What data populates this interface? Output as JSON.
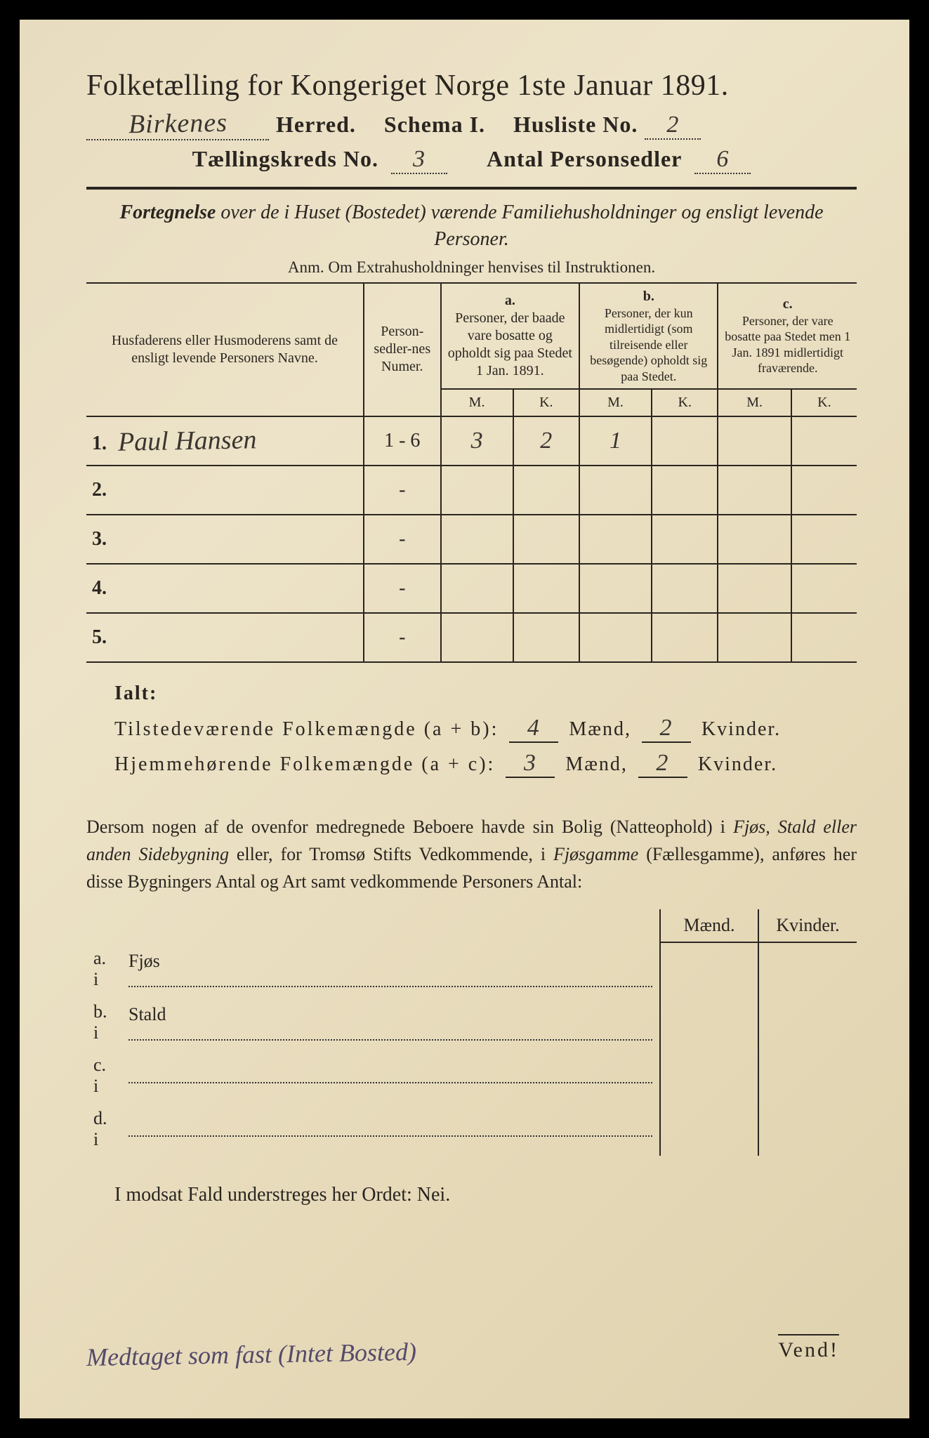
{
  "title": "Folketælling for Kongeriget Norge 1ste Januar 1891.",
  "header": {
    "herred_value": "Birkenes",
    "herred_label": "Herred.",
    "schema_label": "Schema I.",
    "husliste_label": "Husliste No.",
    "husliste_value": "2",
    "kreds_label": "Tællingskreds No.",
    "kreds_value": "3",
    "antal_label": "Antal Personsedler",
    "antal_value": "6"
  },
  "subtitle": "Fortegnelse over de i Huset (Bostedet) værende Familiehusholdninger og ensligt levende Personer.",
  "anm": "Anm. Om Extrahusholdninger henvises til Instruktionen.",
  "table": {
    "col_names": "Husfaderens eller Husmoderens samt de ensligt levende Personers Navne.",
    "col_num": "Person-sedler-nes Numer.",
    "col_a_head": "a.",
    "col_a": "Personer, der baade vare bosatte og opholdt sig paa Stedet 1 Jan. 1891.",
    "col_b_head": "b.",
    "col_b": "Personer, der kun midlertidigt (som tilreisende eller besøgende) opholdt sig paa Stedet.",
    "col_c_head": "c.",
    "col_c": "Personer, der vare bosatte paa Stedet men 1 Jan. 1891 midlertidigt fraværende.",
    "m": "M.",
    "k": "K.",
    "rows": [
      {
        "n": "1.",
        "name": "Paul Hansen",
        "num": "1 - 6",
        "am": "3",
        "ak": "2",
        "bm": "1",
        "bk": "",
        "cm": "",
        "ck": ""
      },
      {
        "n": "2.",
        "name": "",
        "num": "-",
        "am": "",
        "ak": "",
        "bm": "",
        "bk": "",
        "cm": "",
        "ck": ""
      },
      {
        "n": "3.",
        "name": "",
        "num": "-",
        "am": "",
        "ak": "",
        "bm": "",
        "bk": "",
        "cm": "",
        "ck": ""
      },
      {
        "n": "4.",
        "name": "",
        "num": "-",
        "am": "",
        "ak": "",
        "bm": "",
        "bk": "",
        "cm": "",
        "ck": ""
      },
      {
        "n": "5.",
        "name": "",
        "num": "-",
        "am": "",
        "ak": "",
        "bm": "",
        "bk": "",
        "cm": "",
        "ck": ""
      }
    ]
  },
  "ialt": {
    "label": "Ialt:",
    "line1_label": "Tilstedeværende Folkemængde (a + b):",
    "line1_m": "4",
    "line1_k": "2",
    "line2_label": "Hjemmehørende Folkemængde (a + c):",
    "line2_m": "3",
    "line2_k": "2",
    "maend": "Mænd,",
    "kvinder": "Kvinder."
  },
  "para": "Dersom nogen af de ovenfor medregnede Beboere havde sin Bolig (Natteophold) i Fjøs, Stald eller anden Sidebygning eller, for Tromsø Stifts Vedkommende, i Fjøsgamme (Fællesgamme), anføres her disse Bygningers Antal og Art samt vedkommende Personers Antal:",
  "bygn": {
    "maend": "Mænd.",
    "kvinder": "Kvinder.",
    "rows": [
      {
        "lbl": "a. i",
        "txt": "Fjøs"
      },
      {
        "lbl": "b. i",
        "txt": "Stald"
      },
      {
        "lbl": "c. i",
        "txt": ""
      },
      {
        "lbl": "d. i",
        "txt": ""
      }
    ]
  },
  "nei": "I modsat Fald understreges her Ordet: Nei.",
  "vend": "Vend!",
  "bottom_note": "Medtaget som fast (Intet Bosted)"
}
